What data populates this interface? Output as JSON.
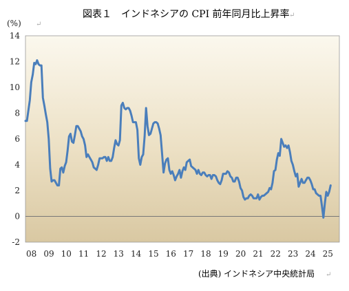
{
  "chart_data": {
    "type": "line",
    "title": "図表１　インドネシアの CPI 前年同月比上昇率",
    "ylabel": "(%)",
    "xlabel": "",
    "source": "(出典) インドネシア中央統計局",
    "ylim": [
      -2,
      14
    ],
    "yticks": [
      "14",
      "12",
      "10",
      "8",
      "6",
      "4",
      "2",
      "0",
      "-2"
    ],
    "xlim": [
      "2008-01",
      "2025-12"
    ],
    "xticks": [
      "08",
      "09",
      "10",
      "11",
      "12",
      "13",
      "14",
      "15",
      "16",
      "17",
      "18",
      "19",
      "20",
      "21",
      "22",
      "23",
      "24",
      "25"
    ],
    "grid": false,
    "line_color": "#4a7ebb",
    "background": "tan-gradient",
    "series": [
      {
        "values": [
          [
            "2008-01",
            7.4
          ],
          [
            "2008-02",
            7.4
          ],
          [
            "2008-03",
            8.2
          ],
          [
            "2008-04",
            9.0
          ],
          [
            "2008-05",
            10.4
          ],
          [
            "2008-06",
            11.0
          ],
          [
            "2008-07",
            11.9
          ],
          [
            "2008-08",
            11.8
          ],
          [
            "2008-09",
            12.1
          ],
          [
            "2008-10",
            11.8
          ],
          [
            "2008-11",
            11.7
          ],
          [
            "2008-12",
            11.7
          ],
          [
            "2009-01",
            9.2
          ],
          [
            "2009-02",
            8.6
          ],
          [
            "2009-03",
            7.9
          ],
          [
            "2009-04",
            7.3
          ],
          [
            "2009-05",
            6.0
          ],
          [
            "2009-06",
            3.7
          ],
          [
            "2009-07",
            2.7
          ],
          [
            "2009-08",
            2.8
          ],
          [
            "2009-09",
            2.8
          ],
          [
            "2009-10",
            2.6
          ],
          [
            "2009-11",
            2.4
          ],
          [
            "2009-12",
            2.4
          ],
          [
            "2010-01",
            3.7
          ],
          [
            "2010-02",
            3.8
          ],
          [
            "2010-03",
            3.4
          ],
          [
            "2010-04",
            3.9
          ],
          [
            "2010-05",
            4.2
          ],
          [
            "2010-06",
            5.1
          ],
          [
            "2010-07",
            6.2
          ],
          [
            "2010-08",
            6.4
          ],
          [
            "2010-09",
            5.8
          ],
          [
            "2010-10",
            5.7
          ],
          [
            "2010-11",
            6.3
          ],
          [
            "2010-12",
            7.0
          ],
          [
            "2011-01",
            7.0
          ],
          [
            "2011-02",
            6.8
          ],
          [
            "2011-03",
            6.6
          ],
          [
            "2011-04",
            6.2
          ],
          [
            "2011-05",
            6.0
          ],
          [
            "2011-06",
            5.5
          ],
          [
            "2011-07",
            4.6
          ],
          [
            "2011-08",
            4.8
          ],
          [
            "2011-09",
            4.6
          ],
          [
            "2011-10",
            4.4
          ],
          [
            "2011-11",
            4.2
          ],
          [
            "2011-12",
            3.8
          ],
          [
            "2012-01",
            3.7
          ],
          [
            "2012-02",
            3.6
          ],
          [
            "2012-03",
            4.0
          ],
          [
            "2012-04",
            4.5
          ],
          [
            "2012-05",
            4.5
          ],
          [
            "2012-06",
            4.5
          ],
          [
            "2012-07",
            4.6
          ],
          [
            "2012-08",
            4.6
          ],
          [
            "2012-09",
            4.3
          ],
          [
            "2012-10",
            4.6
          ],
          [
            "2012-11",
            4.3
          ],
          [
            "2012-12",
            4.3
          ],
          [
            "2013-01",
            4.6
          ],
          [
            "2013-02",
            5.3
          ],
          [
            "2013-03",
            5.9
          ],
          [
            "2013-04",
            5.6
          ],
          [
            "2013-05",
            5.5
          ],
          [
            "2013-06",
            5.9
          ],
          [
            "2013-07",
            8.6
          ],
          [
            "2013-08",
            8.8
          ],
          [
            "2013-09",
            8.4
          ],
          [
            "2013-10",
            8.3
          ],
          [
            "2013-11",
            8.4
          ],
          [
            "2013-12",
            8.4
          ],
          [
            "2014-01",
            8.2
          ],
          [
            "2014-02",
            7.8
          ],
          [
            "2014-03",
            7.3
          ],
          [
            "2014-04",
            7.3
          ],
          [
            "2014-05",
            7.3
          ],
          [
            "2014-06",
            6.7
          ],
          [
            "2014-07",
            4.5
          ],
          [
            "2014-08",
            4.0
          ],
          [
            "2014-09",
            4.6
          ],
          [
            "2014-10",
            4.8
          ],
          [
            "2014-11",
            6.2
          ],
          [
            "2014-12",
            8.4
          ],
          [
            "2015-01",
            7.0
          ],
          [
            "2015-02",
            6.3
          ],
          [
            "2015-03",
            6.4
          ],
          [
            "2015-04",
            6.8
          ],
          [
            "2015-05",
            7.2
          ],
          [
            "2015-06",
            7.3
          ],
          [
            "2015-07",
            7.3
          ],
          [
            "2015-08",
            7.2
          ],
          [
            "2015-09",
            6.8
          ],
          [
            "2015-10",
            6.3
          ],
          [
            "2015-11",
            4.9
          ],
          [
            "2015-12",
            3.4
          ],
          [
            "2016-01",
            4.1
          ],
          [
            "2016-02",
            4.4
          ],
          [
            "2016-03",
            4.5
          ],
          [
            "2016-04",
            3.6
          ],
          [
            "2016-05",
            3.3
          ],
          [
            "2016-06",
            3.5
          ],
          [
            "2016-07",
            3.2
          ],
          [
            "2016-08",
            2.8
          ],
          [
            "2016-09",
            3.1
          ],
          [
            "2016-10",
            3.3
          ],
          [
            "2016-11",
            3.6
          ],
          [
            "2016-12",
            3.0
          ],
          [
            "2017-01",
            3.5
          ],
          [
            "2017-02",
            3.8
          ],
          [
            "2017-03",
            3.6
          ],
          [
            "2017-04",
            4.2
          ],
          [
            "2017-05",
            4.3
          ],
          [
            "2017-06",
            4.4
          ],
          [
            "2017-07",
            3.9
          ],
          [
            "2017-08",
            3.8
          ],
          [
            "2017-09",
            3.7
          ],
          [
            "2017-10",
            3.6
          ],
          [
            "2017-11",
            3.3
          ],
          [
            "2017-12",
            3.6
          ],
          [
            "2018-01",
            3.3
          ],
          [
            "2018-02",
            3.2
          ],
          [
            "2018-03",
            3.4
          ],
          [
            "2018-04",
            3.4
          ],
          [
            "2018-05",
            3.2
          ],
          [
            "2018-06",
            3.1
          ],
          [
            "2018-07",
            3.2
          ],
          [
            "2018-08",
            3.2
          ],
          [
            "2018-09",
            2.9
          ],
          [
            "2018-10",
            3.2
          ],
          [
            "2018-11",
            3.2
          ],
          [
            "2018-12",
            3.1
          ],
          [
            "2019-01",
            2.8
          ],
          [
            "2019-02",
            2.6
          ],
          [
            "2019-03",
            2.5
          ],
          [
            "2019-04",
            2.8
          ],
          [
            "2019-05",
            3.3
          ],
          [
            "2019-06",
            3.3
          ],
          [
            "2019-07",
            3.3
          ],
          [
            "2019-08",
            3.5
          ],
          [
            "2019-09",
            3.4
          ],
          [
            "2019-10",
            3.1
          ],
          [
            "2019-11",
            3.0
          ],
          [
            "2019-12",
            2.7
          ],
          [
            "2020-01",
            2.7
          ],
          [
            "2020-02",
            3.0
          ],
          [
            "2020-03",
            3.0
          ],
          [
            "2020-04",
            2.7
          ],
          [
            "2020-05",
            2.2
          ],
          [
            "2020-06",
            2.0
          ],
          [
            "2020-07",
            1.5
          ],
          [
            "2020-08",
            1.3
          ],
          [
            "2020-09",
            1.4
          ],
          [
            "2020-10",
            1.4
          ],
          [
            "2020-11",
            1.6
          ],
          [
            "2020-12",
            1.7
          ],
          [
            "2021-01",
            1.6
          ],
          [
            "2021-02",
            1.4
          ],
          [
            "2021-03",
            1.4
          ],
          [
            "2021-04",
            1.4
          ],
          [
            "2021-05",
            1.7
          ],
          [
            "2021-06",
            1.3
          ],
          [
            "2021-07",
            1.5
          ],
          [
            "2021-08",
            1.6
          ],
          [
            "2021-09",
            1.6
          ],
          [
            "2021-10",
            1.7
          ],
          [
            "2021-11",
            1.8
          ],
          [
            "2021-12",
            1.9
          ],
          [
            "2022-01",
            2.2
          ],
          [
            "2022-02",
            2.1
          ],
          [
            "2022-03",
            2.6
          ],
          [
            "2022-04",
            3.5
          ],
          [
            "2022-05",
            3.6
          ],
          [
            "2022-06",
            4.4
          ],
          [
            "2022-07",
            4.9
          ],
          [
            "2022-08",
            4.7
          ],
          [
            "2022-09",
            6.0
          ],
          [
            "2022-10",
            5.7
          ],
          [
            "2022-11",
            5.4
          ],
          [
            "2022-12",
            5.5
          ],
          [
            "2023-01",
            5.3
          ],
          [
            "2023-02",
            5.5
          ],
          [
            "2023-03",
            5.0
          ],
          [
            "2023-04",
            4.3
          ],
          [
            "2023-05",
            4.0
          ],
          [
            "2023-06",
            3.5
          ],
          [
            "2023-07",
            3.1
          ],
          [
            "2023-08",
            3.3
          ],
          [
            "2023-09",
            2.3
          ],
          [
            "2023-10",
            2.6
          ],
          [
            "2023-11",
            2.9
          ],
          [
            "2023-12",
            2.6
          ],
          [
            "2024-01",
            2.6
          ],
          [
            "2024-02",
            2.8
          ],
          [
            "2024-03",
            3.0
          ],
          [
            "2024-04",
            3.0
          ],
          [
            "2024-05",
            2.8
          ],
          [
            "2024-06",
            2.5
          ],
          [
            "2024-07",
            2.1
          ],
          [
            "2024-08",
            2.1
          ],
          [
            "2024-09",
            1.8
          ],
          [
            "2024-10",
            1.7
          ],
          [
            "2024-11",
            1.6
          ],
          [
            "2024-12",
            1.6
          ],
          [
            "2025-01",
            0.8
          ],
          [
            "2025-02",
            -0.1
          ],
          [
            "2025-03",
            1.0
          ],
          [
            "2025-04",
            1.9
          ],
          [
            "2025-05",
            1.6
          ],
          [
            "2025-06",
            1.9
          ],
          [
            "2025-07",
            2.4
          ]
        ]
      }
    ]
  }
}
